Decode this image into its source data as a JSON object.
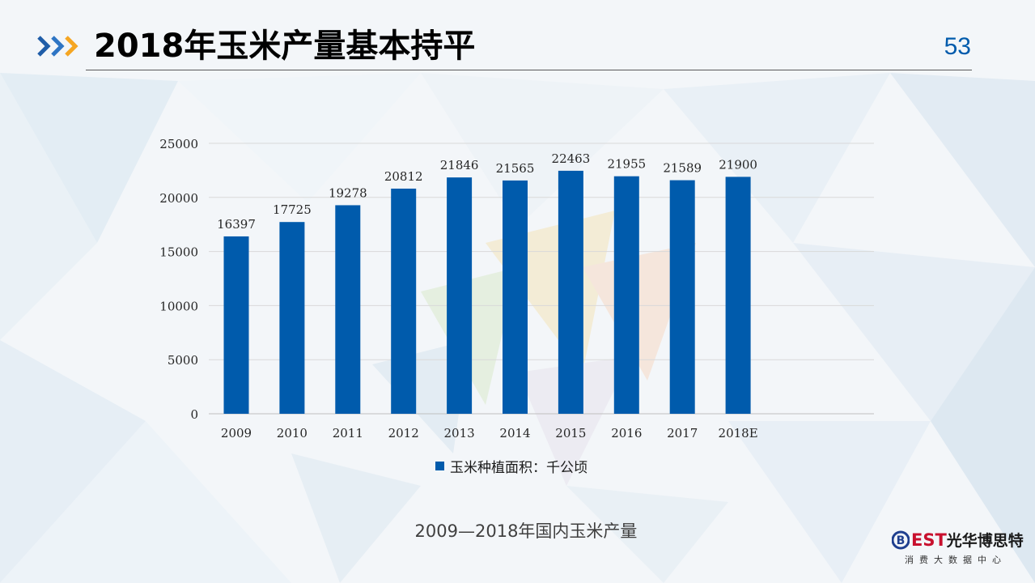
{
  "slide": {
    "title": "2018年玉米产量基本持平",
    "page_number": "53",
    "caption": "2009—2018年国内玉米产量",
    "accent_color": "#005bac",
    "arrow_colors": [
      "#1f5da8",
      "#2e75c4",
      "#f5a623"
    ]
  },
  "logo": {
    "letter_b": "B",
    "letters_est": "EST",
    "name_cn": "光华博思特",
    "subtitle": "消费大数据中心"
  },
  "chart_data": {
    "type": "bar",
    "categories": [
      "2009",
      "2010",
      "2011",
      "2012",
      "2013",
      "2014",
      "2015",
      "2016",
      "2017",
      "2018E"
    ],
    "series": [
      {
        "name": "玉米种植面积：千公顷",
        "values": [
          16397,
          17725,
          19278,
          20812,
          21846,
          21565,
          22463,
          21955,
          21589,
          21900
        ],
        "color": "#005bac"
      }
    ],
    "ylim": [
      0,
      25000
    ],
    "yticks": [
      "0",
      "5000",
      "10000",
      "15000",
      "20000",
      "25000"
    ],
    "title": "",
    "xlabel": "",
    "ylabel": "",
    "grid": true,
    "legend_position": "bottom",
    "data_labels": true
  }
}
